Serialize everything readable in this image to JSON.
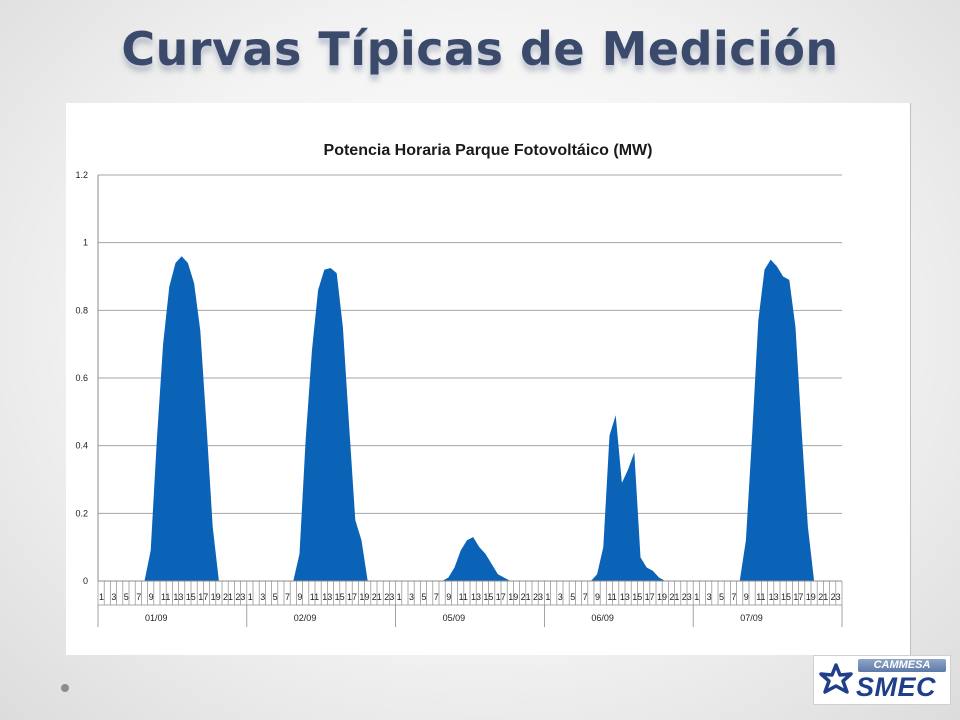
{
  "slide": {
    "title": "Curvas Típicas de Medición"
  },
  "logo": {
    "small_text": "CAMMESA",
    "big_text": "SMEC"
  },
  "colors": {
    "series_fill": "#0b63b8",
    "title_color": "#3b4a6b",
    "gridline": "#a6a6a6"
  },
  "chart_data": {
    "type": "area",
    "title": "Potencia Horaria Parque Fotovoltáico (MW)",
    "xlabel": "",
    "ylabel": "",
    "ylim": [
      0,
      1.2
    ],
    "yticks": [
      "0",
      "0.2",
      "0.4",
      "0.6",
      "0.8",
      "1",
      "1.2"
    ],
    "grid": true,
    "legend": "none",
    "hour_tick_labels": [
      "1",
      "3",
      "5",
      "7",
      "9",
      "11",
      "13",
      "15",
      "17",
      "19",
      "21",
      "23"
    ],
    "days": [
      {
        "label": "01/09",
        "values": [
          0,
          0,
          0,
          0,
          0,
          0,
          0,
          0,
          0.09,
          0.42,
          0.7,
          0.87,
          0.94,
          0.96,
          0.94,
          0.88,
          0.74,
          0.46,
          0.16,
          0,
          0,
          0,
          0,
          0
        ]
      },
      {
        "label": "02/09",
        "values": [
          0,
          0,
          0,
          0,
          0,
          0,
          0,
          0,
          0.08,
          0.42,
          0.68,
          0.86,
          0.92,
          0.925,
          0.91,
          0.75,
          0.46,
          0.18,
          0.12,
          0,
          0,
          0,
          0,
          0
        ]
      },
      {
        "label": "05/09",
        "values": [
          0,
          0,
          0,
          0,
          0,
          0,
          0,
          0,
          0.01,
          0.04,
          0.09,
          0.12,
          0.13,
          0.1,
          0.08,
          0.05,
          0.02,
          0.01,
          0,
          0,
          0,
          0,
          0,
          0
        ]
      },
      {
        "label": "06/09",
        "values": [
          0,
          0,
          0,
          0,
          0,
          0,
          0,
          0,
          0.02,
          0.1,
          0.43,
          0.49,
          0.29,
          0.33,
          0.38,
          0.07,
          0.04,
          0.03,
          0.01,
          0,
          0,
          0,
          0,
          0
        ]
      },
      {
        "label": "07/09",
        "values": [
          0,
          0,
          0,
          0,
          0,
          0,
          0,
          0,
          0.12,
          0.43,
          0.77,
          0.92,
          0.95,
          0.93,
          0.9,
          0.89,
          0.75,
          0.44,
          0.16,
          0,
          0,
          0,
          0,
          0
        ]
      }
    ]
  }
}
